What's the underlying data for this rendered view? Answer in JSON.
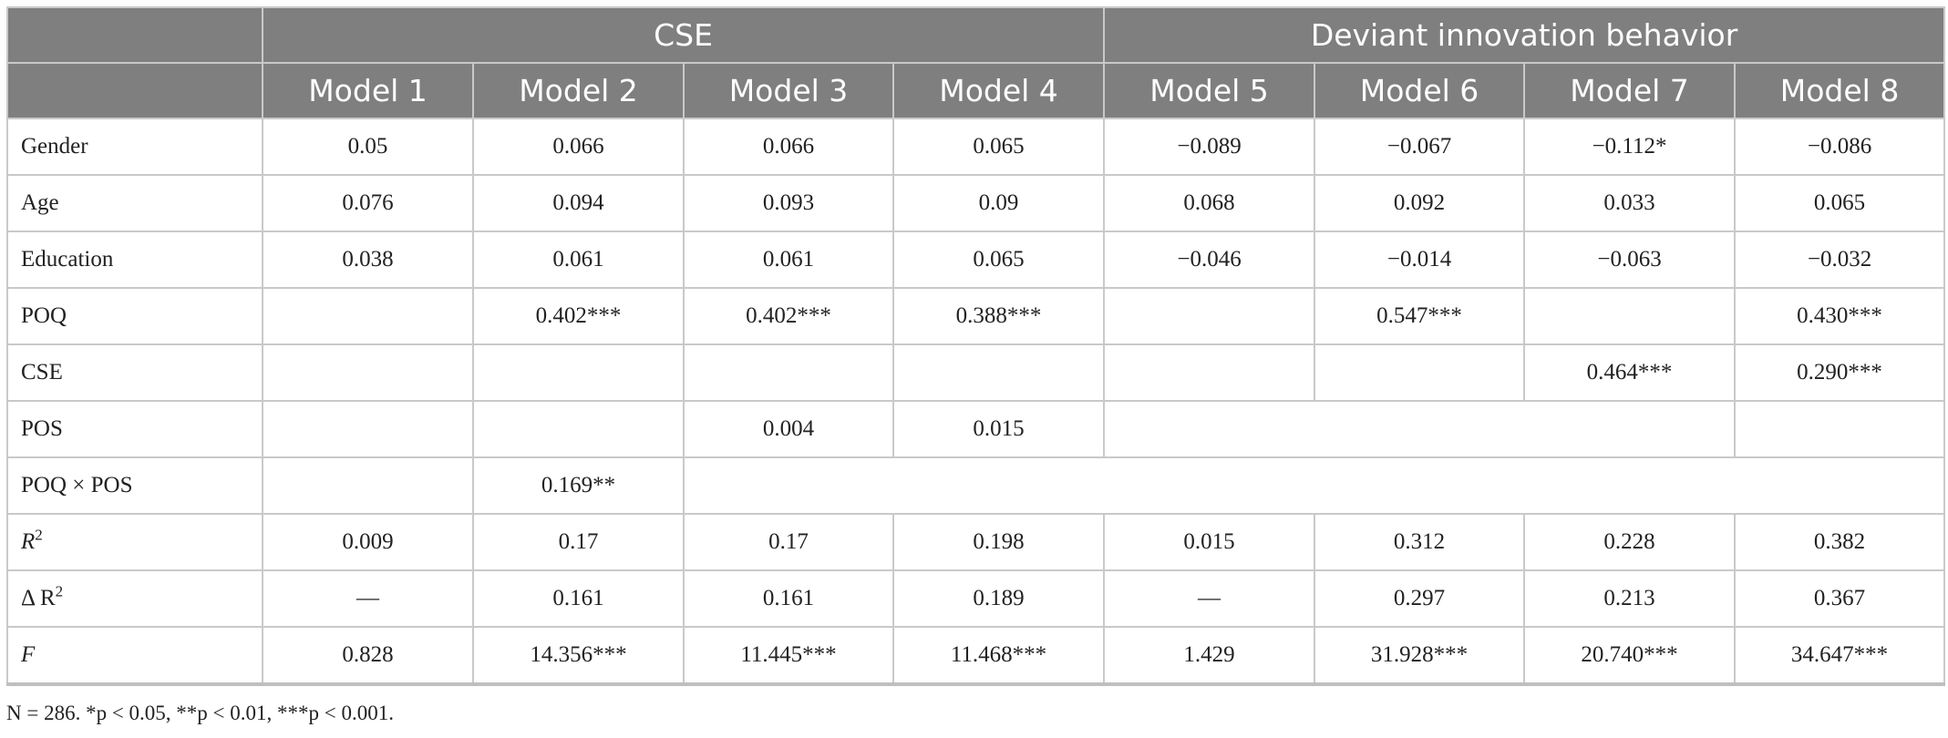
{
  "header": {
    "group1": "CSE",
    "group2": "Deviant innovation behavior",
    "models": [
      "Model 1",
      "Model 2",
      "Model 3",
      "Model 4",
      "Model 5",
      "Model 6",
      "Model 7",
      "Model 8"
    ]
  },
  "rows": {
    "gender": {
      "label": "Gender",
      "cells": [
        "0.05",
        "0.066",
        "0.066",
        "0.065",
        "−0.089",
        "−0.067",
        "−0.112*",
        "−0.086"
      ]
    },
    "age": {
      "label": "Age",
      "cells": [
        "0.076",
        "0.094",
        "0.093",
        "0.09",
        "0.068",
        "0.092",
        "0.033",
        "0.065"
      ]
    },
    "education": {
      "label": "Education",
      "cells": [
        "0.038",
        "0.061",
        "0.061",
        "0.065",
        "−0.046",
        "−0.014",
        "−0.063",
        "−0.032"
      ]
    },
    "poq": {
      "label": "POQ",
      "cells": [
        "",
        "0.402***",
        "0.402***",
        "0.388***",
        "",
        "0.547***",
        "",
        "0.430***"
      ]
    },
    "cse": {
      "label": "CSE",
      "cells": [
        "",
        "",
        "",
        "",
        "",
        "",
        "0.464***",
        "0.290***"
      ]
    },
    "pos": {
      "label": "POS",
      "cells": [
        "",
        "",
        "0.004",
        "0.015",
        "",
        "",
        "",
        ""
      ]
    },
    "interaction": {
      "label": "POQ × POS",
      "cells": [
        "",
        "0.169**",
        "",
        "",
        "",
        "",
        "",
        ""
      ]
    },
    "r2": {
      "label_main": "R",
      "label_sup": "2",
      "cells": [
        "0.009",
        "0.17",
        "0.17",
        "0.198",
        "0.015",
        "0.312",
        "0.228",
        "0.382"
      ]
    },
    "dr2": {
      "label_main": "Δ R",
      "label_sup": "2",
      "cells": [
        "—",
        "0.161",
        "0.161",
        "0.189",
        "—",
        "0.297",
        "0.213",
        "0.367"
      ]
    },
    "f": {
      "label": "F",
      "cells": [
        "0.828",
        "14.356***",
        "11.445***",
        "11.468***",
        "1.429",
        "31.928***",
        "20.740***",
        "34.647***"
      ]
    }
  },
  "footnote": "N = 286. *p < 0.05, **p < 0.01, ***p < 0.001."
}
